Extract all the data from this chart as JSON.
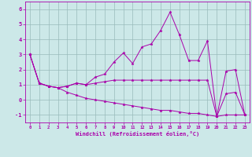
{
  "xlabel": "Windchill (Refroidissement éolien,°C)",
  "xlim": [
    -0.5,
    23.5
  ],
  "ylim": [
    -1.5,
    6.5
  ],
  "yticks": [
    -1,
    0,
    1,
    2,
    3,
    4,
    5,
    6
  ],
  "xticks": [
    0,
    1,
    2,
    3,
    4,
    5,
    6,
    7,
    8,
    9,
    10,
    11,
    12,
    13,
    14,
    15,
    16,
    17,
    18,
    19,
    20,
    21,
    22,
    23
  ],
  "bg_color": "#cce8e8",
  "line_color": "#aa00aa",
  "grid_color": "#99bbbb",
  "series": [
    [
      3.0,
      1.1,
      0.9,
      0.8,
      0.9,
      1.1,
      1.0,
      1.5,
      1.7,
      2.5,
      3.1,
      2.4,
      3.5,
      3.7,
      4.6,
      5.8,
      4.3,
      2.6,
      2.6,
      3.9,
      -1.1,
      1.9,
      2.0,
      -1.0
    ],
    [
      3.0,
      1.1,
      0.9,
      0.8,
      0.9,
      1.1,
      1.0,
      1.1,
      1.2,
      1.3,
      1.3,
      1.3,
      1.3,
      1.3,
      1.3,
      1.3,
      1.3,
      1.3,
      1.3,
      1.3,
      -1.1,
      0.4,
      0.5,
      -1.0
    ],
    [
      3.0,
      1.1,
      0.9,
      0.8,
      0.5,
      0.3,
      0.1,
      0.0,
      -0.1,
      -0.2,
      -0.3,
      -0.4,
      -0.5,
      -0.6,
      -0.7,
      -0.7,
      -0.8,
      -0.9,
      -0.9,
      -1.0,
      -1.1,
      -1.0,
      -1.0,
      -1.0
    ]
  ]
}
